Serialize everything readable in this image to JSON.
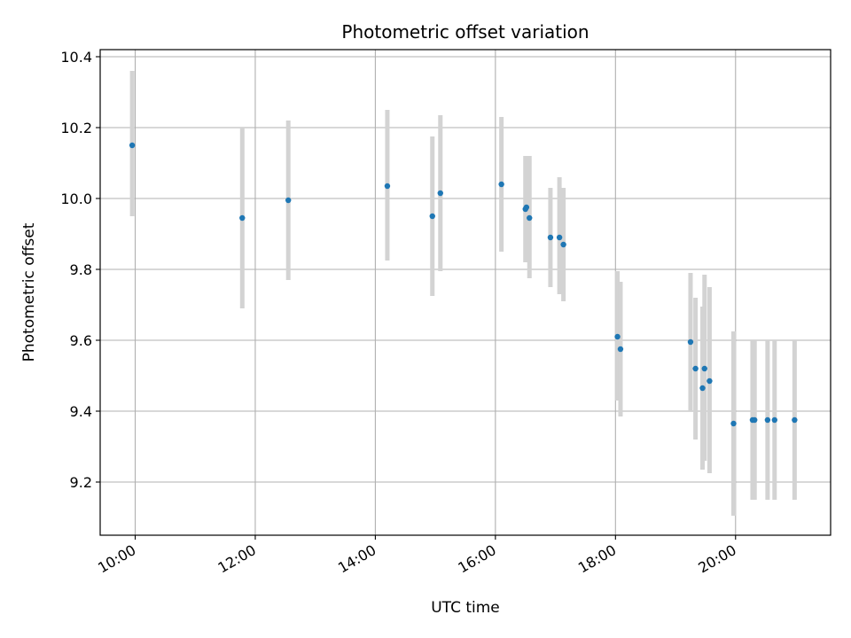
{
  "chart_data": {
    "type": "scatter",
    "title": "Photometric offset variation",
    "xlabel": "UTC time",
    "ylabel": "Photometric offset",
    "x_axis_type": "time",
    "xlim": [
      "09:25",
      "21:35"
    ],
    "ylim": [
      9.05,
      10.42
    ],
    "x_ticks": [
      "10:00",
      "12:00",
      "14:00",
      "16:00",
      "18:00",
      "20:00"
    ],
    "y_ticks": [
      9.2,
      9.4,
      9.6,
      9.8,
      10.0,
      10.2,
      10.4
    ],
    "y_tick_labels": [
      "9.2",
      "9.4",
      "9.6",
      "9.8",
      "10.0",
      "10.2",
      "10.4"
    ],
    "grid": true,
    "legend": "none",
    "point_color": "#1f77b4",
    "errorbar_color": "#d3d3d3",
    "points": [
      {
        "time": "09:57",
        "y": 10.15,
        "low": 9.95,
        "high": 10.36
      },
      {
        "time": "11:47",
        "y": 9.945,
        "low": 9.69,
        "high": 10.2
      },
      {
        "time": "12:33",
        "y": 9.995,
        "low": 9.77,
        "high": 10.22
      },
      {
        "time": "14:12",
        "y": 10.035,
        "low": 9.825,
        "high": 10.25
      },
      {
        "time": "14:57",
        "y": 9.95,
        "low": 9.725,
        "high": 10.175
      },
      {
        "time": "15:05",
        "y": 10.015,
        "low": 9.795,
        "high": 10.235
      },
      {
        "time": "16:06",
        "y": 10.04,
        "low": 9.85,
        "high": 10.23
      },
      {
        "time": "16:30",
        "y": 9.97,
        "low": 9.82,
        "high": 10.12
      },
      {
        "time": "16:31",
        "y": 9.975,
        "low": 9.83,
        "high": 10.12
      },
      {
        "time": "16:34",
        "y": 9.945,
        "low": 9.775,
        "high": 10.12
      },
      {
        "time": "16:55",
        "y": 9.89,
        "low": 9.75,
        "high": 10.03
      },
      {
        "time": "17:04",
        "y": 9.89,
        "low": 9.73,
        "high": 10.06
      },
      {
        "time": "17:08",
        "y": 9.87,
        "low": 9.71,
        "high": 10.03
      },
      {
        "time": "18:02",
        "y": 9.61,
        "low": 9.43,
        "high": 9.795
      },
      {
        "time": "18:05",
        "y": 9.575,
        "low": 9.385,
        "high": 9.765
      },
      {
        "time": "19:15",
        "y": 9.595,
        "low": 9.4,
        "high": 9.79
      },
      {
        "time": "19:20",
        "y": 9.52,
        "low": 9.32,
        "high": 9.72
      },
      {
        "time": "19:27",
        "y": 9.465,
        "low": 9.235,
        "high": 9.695
      },
      {
        "time": "19:29",
        "y": 9.52,
        "low": 9.26,
        "high": 9.785
      },
      {
        "time": "19:34",
        "y": 9.485,
        "low": 9.225,
        "high": 9.75
      },
      {
        "time": "19:58",
        "y": 9.365,
        "low": 9.105,
        "high": 9.625
      },
      {
        "time": "20:17",
        "y": 9.375,
        "low": 9.15,
        "high": 9.6
      },
      {
        "time": "20:19",
        "y": 9.375,
        "low": 9.15,
        "high": 9.6
      },
      {
        "time": "20:32",
        "y": 9.375,
        "low": 9.15,
        "high": 9.6
      },
      {
        "time": "20:39",
        "y": 9.375,
        "low": 9.15,
        "high": 9.6
      },
      {
        "time": "20:59",
        "y": 9.375,
        "low": 9.15,
        "high": 9.6
      }
    ]
  }
}
